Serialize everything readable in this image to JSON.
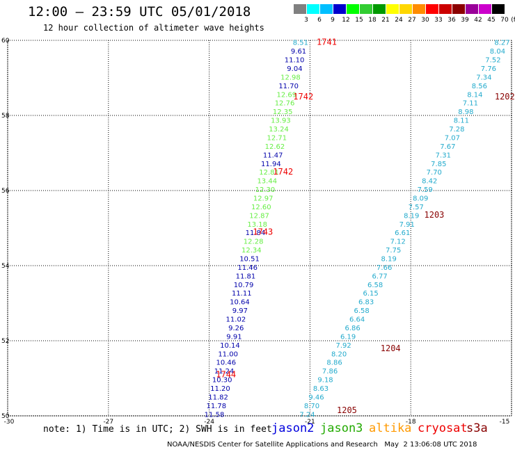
{
  "header": {
    "title": "12:00 – 23:59 UTC 05/01/2018",
    "subtitle": "12 hour collection of altimeter wave heights"
  },
  "legend": {
    "unit": "(ft)",
    "items": [
      {
        "label": "3",
        "color": "#808080"
      },
      {
        "label": "6",
        "color": "#00ffff"
      },
      {
        "label": "9",
        "color": "#00bfff"
      },
      {
        "label": "12",
        "color": "#0000cd"
      },
      {
        "label": "15",
        "color": "#00ff00"
      },
      {
        "label": "18",
        "color": "#32cd32"
      },
      {
        "label": "21",
        "color": "#009900"
      },
      {
        "label": "24",
        "color": "#ffff00"
      },
      {
        "label": "27",
        "color": "#ffd700"
      },
      {
        "label": "30",
        "color": "#ff8c00"
      },
      {
        "label": "33",
        "color": "#ff0000"
      },
      {
        "label": "36",
        "color": "#cc0000"
      },
      {
        "label": "39",
        "color": "#8b0000"
      },
      {
        "label": "42",
        "color": "#990099"
      },
      {
        "label": "45",
        "color": "#cc00cc"
      },
      {
        "label": "70",
        "color": "#000000"
      }
    ]
  },
  "axes": {
    "lat_labels": [
      "60",
      "58",
      "56",
      "54",
      "52",
      "50"
    ],
    "lon_labels": [
      "-30",
      "-27",
      "-24",
      "-21",
      "-18",
      "-15"
    ]
  },
  "track_colors": {
    "jason2": "#0000aa",
    "jason3": "#66ee44",
    "cryosat": "#ee0000",
    "s3a": "#880000",
    "s3a_values": "#22aacc"
  },
  "track_a": [
    {
      "v": "8.51",
      "c": "s3a_values"
    },
    {
      "v": "9.61",
      "c": "jason2"
    },
    {
      "v": "11.10",
      "c": "jason2"
    },
    {
      "v": "9.04",
      "c": "jason2"
    },
    {
      "v": "12.98",
      "c": "jason3"
    },
    {
      "v": "11.70",
      "c": "jason2"
    },
    {
      "v": "12.69",
      "c": "jason3"
    },
    {
      "v": "12.76",
      "c": "jason3"
    },
    {
      "v": "12.35",
      "c": "jason3"
    },
    {
      "v": "13.93",
      "c": "jason3"
    },
    {
      "v": "13.24",
      "c": "jason3"
    },
    {
      "v": "12.71",
      "c": "jason3"
    },
    {
      "v": "12.62",
      "c": "jason3"
    },
    {
      "v": "11.47",
      "c": "jason2"
    },
    {
      "v": "11.94",
      "c": "jason2"
    },
    {
      "v": "12.81",
      "c": "jason3"
    },
    {
      "v": "13.44",
      "c": "jason3"
    },
    {
      "v": "12.30",
      "c": "jason3"
    },
    {
      "v": "12.97",
      "c": "jason3"
    },
    {
      "v": "12.60",
      "c": "jason3"
    },
    {
      "v": "12.87",
      "c": "jason3"
    },
    {
      "v": "13.18",
      "c": "jason3"
    },
    {
      "v": "11.84",
      "c": "jason2"
    },
    {
      "v": "12.28",
      "c": "jason3"
    },
    {
      "v": "12.34",
      "c": "jason3"
    },
    {
      "v": "10.51",
      "c": "jason2"
    },
    {
      "v": "11.46",
      "c": "jason2"
    },
    {
      "v": "11.81",
      "c": "jason2"
    },
    {
      "v": "10.79",
      "c": "jason2"
    },
    {
      "v": "11.11",
      "c": "jason2"
    },
    {
      "v": "10.64",
      "c": "jason2"
    },
    {
      "v": "9.97",
      "c": "jason2"
    },
    {
      "v": "11.02",
      "c": "jason2"
    },
    {
      "v": "9.26",
      "c": "jason2"
    },
    {
      "v": "9.91",
      "c": "jason2"
    },
    {
      "v": "10.14",
      "c": "jason2"
    },
    {
      "v": "11.00",
      "c": "jason2"
    },
    {
      "v": "10.46",
      "c": "jason2"
    },
    {
      "v": "11.24",
      "c": "jason2"
    },
    {
      "v": "10.30",
      "c": "jason2"
    },
    {
      "v": "11.20",
      "c": "jason2"
    },
    {
      "v": "11.82",
      "c": "jason2"
    },
    {
      "v": "11.78",
      "c": "jason2"
    },
    {
      "v": "11.58",
      "c": "jason2"
    }
  ],
  "track_b": [
    "8.27",
    "8.04",
    "7.52",
    "7.76",
    "7.34",
    "8.56",
    "8.14",
    "7.11",
    "8.98",
    "8.11",
    "7.28",
    "7.07",
    "7.67",
    "7.31",
    "7.85",
    "7.70",
    "8.42",
    "7.59",
    "8.09",
    "7.57",
    "8.19",
    "7.91",
    "6.61",
    "7.12",
    "7.75",
    "8.19",
    "7.66",
    "6.77",
    "6.58",
    "6.15",
    "6.83",
    "6.58",
    "6.64",
    "6.86",
    "6.19",
    "7.92",
    "8.20",
    "8.86",
    "7.86",
    "9.18",
    "8.63",
    "9.46",
    "8.70",
    "7.24"
  ],
  "time_labels_a": [
    {
      "text": "1741",
      "lat": 59.95,
      "lon": -20.8
    },
    {
      "text": "1742",
      "lat": 58.5,
      "lon": -21.5
    },
    {
      "text": "1742",
      "lat": 56.5,
      "lon": -22.1
    },
    {
      "text": "1743",
      "lat": 54.9,
      "lon": -22.7
    },
    {
      "text": "1744",
      "lat": 51.1,
      "lon": -23.8
    }
  ],
  "time_labels_b": [
    {
      "text": "1202",
      "lat": 58.5,
      "lon": -15.5
    },
    {
      "text": "1203",
      "lat": 55.35,
      "lon": -17.6
    },
    {
      "text": "1204",
      "lat": 51.8,
      "lon": -18.9
    },
    {
      "text": "1205",
      "lat": 50.15,
      "lon": -20.2
    }
  ],
  "footer": {
    "note": "note: 1) Time is in UTC; 2) SWH is in feet",
    "satellites": [
      {
        "name": "jason2",
        "color": "#0000dd"
      },
      {
        "name": "jason3",
        "color": "#22aa00"
      },
      {
        "name": "altika",
        "color": "#ff9900"
      },
      {
        "name": "cryosat",
        "color": "#ee0000"
      },
      {
        "name": "s3a",
        "color": "#880000"
      }
    ],
    "credit": "NOAA/NESDIS Center for Satellite Applications and Research",
    "timestamp": "May  2 13:06:08 UTC 2018"
  }
}
